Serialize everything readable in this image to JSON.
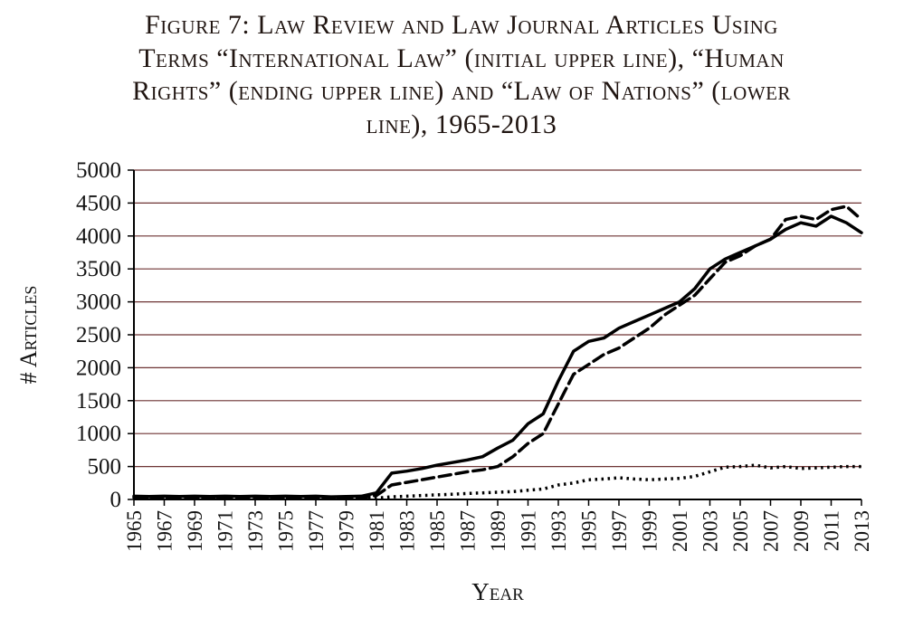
{
  "figure": {
    "title_lines": [
      "Figure 7: Law Review and Law Journal Articles Using",
      "Terms “International Law” (initial upper line), “Human",
      "Rights” (ending upper line) and “Law of Nations” (lower",
      "line), 1965-2013"
    ]
  },
  "chart_data": {
    "type": "line",
    "title": "Figure 7: Law Review and Law Journal Articles Using Terms “International Law” (initial upper line), “Human Rights” (ending upper line) and “Law of Nations” (lower line), 1965-2013",
    "xlabel": "Year",
    "ylabel": "# Articles",
    "ylim": [
      0,
      5000
    ],
    "ytick_step": 500,
    "yticks": [
      0,
      500,
      1000,
      1500,
      2000,
      2500,
      3000,
      3500,
      4000,
      4500,
      5000
    ],
    "grid": "horizontal",
    "grid_color": "#6e3434",
    "axis_color": "#000000",
    "line_color": "#000000",
    "x": [
      1965,
      1966,
      1967,
      1968,
      1969,
      1970,
      1971,
      1972,
      1973,
      1974,
      1975,
      1976,
      1977,
      1978,
      1979,
      1980,
      1981,
      1982,
      1983,
      1984,
      1985,
      1986,
      1987,
      1988,
      1989,
      1990,
      1991,
      1992,
      1993,
      1994,
      1995,
      1996,
      1997,
      1998,
      1999,
      2000,
      2001,
      2002,
      2003,
      2004,
      2005,
      2006,
      2007,
      2008,
      2009,
      2010,
      2011,
      2012,
      2013
    ],
    "xtick_labels": [
      "1965",
      "1967",
      "1969",
      "1971",
      "1973",
      "1975",
      "1977",
      "1979",
      "1981",
      "1983",
      "1985",
      "1987",
      "1989",
      "1991",
      "1993",
      "1995",
      "1997",
      "1999",
      "2001",
      "2003",
      "2005",
      "2007",
      "2009",
      "2011",
      "2013"
    ],
    "series": [
      {
        "name": "International Law",
        "note": "initial upper line",
        "style": "solid",
        "values": [
          50,
          45,
          50,
          45,
          50,
          45,
          50,
          45,
          50,
          45,
          50,
          45,
          50,
          40,
          45,
          50,
          100,
          400,
          430,
          470,
          520,
          560,
          600,
          650,
          780,
          900,
          1150,
          1300,
          1800,
          2250,
          2400,
          2450,
          2600,
          2700,
          2800,
          2900,
          3000,
          3200,
          3500,
          3650,
          3750,
          3850,
          3950,
          4100,
          4200,
          4150,
          4300,
          4200,
          4050
        ]
      },
      {
        "name": "Human Rights",
        "note": "ending upper line",
        "style": "dashed",
        "values": [
          30,
          25,
          30,
          25,
          30,
          25,
          30,
          25,
          30,
          25,
          30,
          25,
          30,
          25,
          30,
          25,
          60,
          220,
          260,
          300,
          340,
          380,
          420,
          450,
          500,
          650,
          850,
          1000,
          1450,
          1900,
          2050,
          2200,
          2300,
          2450,
          2600,
          2800,
          2950,
          3100,
          3350,
          3600,
          3700,
          3850,
          3950,
          4250,
          4300,
          4250,
          4400,
          4450,
          4250
        ]
      },
      {
        "name": "Law of Nations",
        "note": "lower line",
        "style": "dotted",
        "values": [
          10,
          10,
          10,
          10,
          10,
          10,
          10,
          10,
          10,
          10,
          10,
          10,
          10,
          10,
          10,
          10,
          20,
          40,
          50,
          60,
          70,
          80,
          90,
          100,
          110,
          120,
          140,
          160,
          220,
          250,
          300,
          310,
          330,
          310,
          300,
          310,
          320,
          350,
          420,
          490,
          500,
          520,
          480,
          500,
          470,
          480,
          490,
          500,
          500
        ]
      }
    ]
  }
}
